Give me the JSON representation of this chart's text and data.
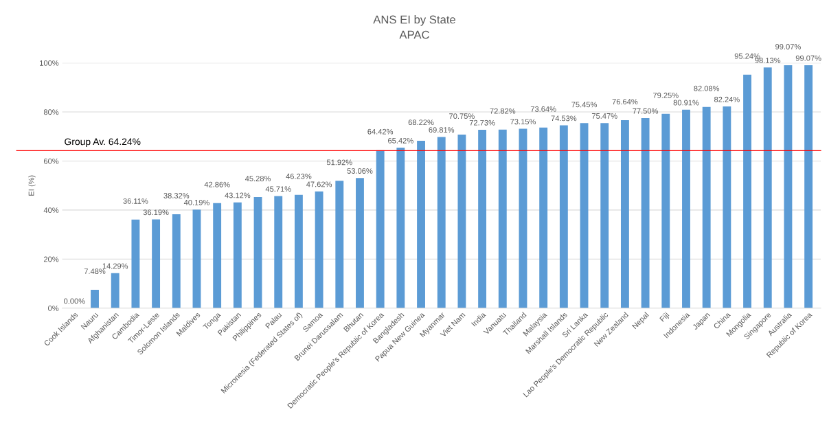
{
  "chart_data": {
    "type": "bar",
    "title": "ANS EI by State",
    "subtitle": "APAC",
    "ylabel": "EI (%)",
    "categories": [
      "Cook Islands",
      "Nauru",
      "Afghanistan",
      "Cambodia",
      "Timor-Leste",
      "Solomon Islands",
      "Maldives",
      "Tonga",
      "Pakistan",
      "Philippines",
      "Palau",
      "Micronesia (Federated States of)",
      "Samoa",
      "Brunei Darussalam",
      "Bhutan",
      "Democratic People's Republic of Korea",
      "Bangladesh",
      "Papua New Guinea",
      "Myanmar",
      "Viet Nam",
      "India",
      "Vanuatu",
      "Thailand",
      "Malaysia",
      "Marshall Islands",
      "Sri Lanka",
      "Lao People's Democratic Republic",
      "New Zealand",
      "Nepal",
      "Fiji",
      "Indonesia",
      "Japan",
      "China",
      "Mongolia",
      "Singapore",
      "Australia",
      "Republic of Korea"
    ],
    "values": [
      0.0,
      7.48,
      14.29,
      36.11,
      36.19,
      38.32,
      40.19,
      42.86,
      43.12,
      45.28,
      45.71,
      46.23,
      47.62,
      51.92,
      53.06,
      64.42,
      65.42,
      68.22,
      69.81,
      70.75,
      72.73,
      72.82,
      73.15,
      73.64,
      74.53,
      75.45,
      75.47,
      76.64,
      77.5,
      79.25,
      80.91,
      82.08,
      82.24,
      95.24,
      98.13,
      99.07,
      99.07
    ],
    "value_labels": [
      "0.00%",
      "7.48%",
      "14.29%",
      "36.11%",
      "36.19%",
      "38.32%",
      "40.19%",
      "42.86%",
      "43.12%",
      "45.28%",
      "45.71%",
      "46.23%",
      "47.62%",
      "51.92%",
      "53.06%",
      "64.42%",
      "65.42%",
      "68.22%",
      "69.81%",
      "70.75%",
      "72.73%",
      "72.82%",
      "73.15%",
      "73.64%",
      "74.53%",
      "75.45%",
      "75.47%",
      "76.64%",
      "77.50%",
      "79.25%",
      "80.91%",
      "82.08%",
      "82.24%",
      "95.24%",
      "98.13%",
      "99.07%",
      "99.07%"
    ],
    "color": "#5b9bd5",
    "ylim": [
      0,
      100
    ],
    "yticks": [
      {
        "value": 0,
        "label": "0%"
      },
      {
        "value": 20,
        "label": "20%"
      },
      {
        "value": 40,
        "label": "40%"
      },
      {
        "value": 60,
        "label": "60%"
      },
      {
        "value": 80,
        "label": "80%"
      },
      {
        "value": 100,
        "label": "100%"
      }
    ],
    "grid": "y",
    "ref_lines": [
      {
        "axis": "y",
        "value": 64.24,
        "label": "Group Av. 64.24%",
        "color": "#ff0000"
      }
    ]
  }
}
